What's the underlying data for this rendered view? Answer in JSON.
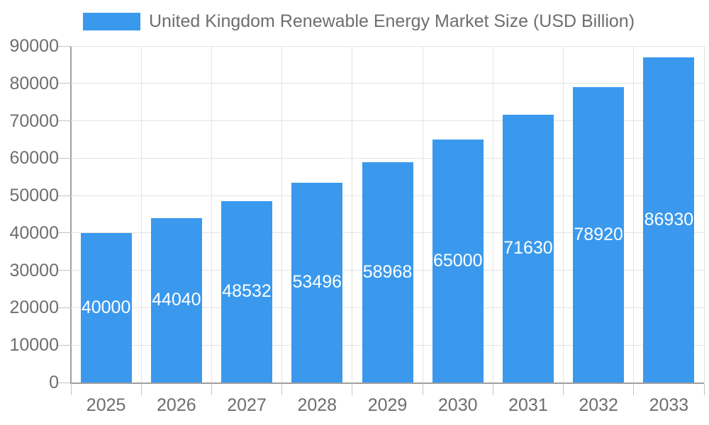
{
  "legend": {
    "label": "United Kingdom Renewable Energy Market Size (USD Billion)"
  },
  "chart_data": {
    "type": "bar",
    "title": "United Kingdom Renewable Energy Market Size (USD Billion)",
    "categories": [
      "2025",
      "2026",
      "2027",
      "2028",
      "2029",
      "2030",
      "2031",
      "2032",
      "2033"
    ],
    "values": [
      40000,
      44040,
      48532,
      53496,
      58968,
      65000,
      71630,
      78920,
      86930
    ],
    "xlabel": "",
    "ylabel": "",
    "ylim": [
      0,
      90000
    ],
    "y_tick_step": 10000,
    "grid": true,
    "legend_position": "top",
    "value_labels": "inside-center",
    "colors": {
      "bar": "#3a99ed",
      "value_label": "#ffffff",
      "axis_text": "#6e6e6e",
      "axis_line": "#9e9e9e",
      "grid_line": "#e3e3e3",
      "tick": "#c4c4c4",
      "background": "#ffffff"
    }
  }
}
